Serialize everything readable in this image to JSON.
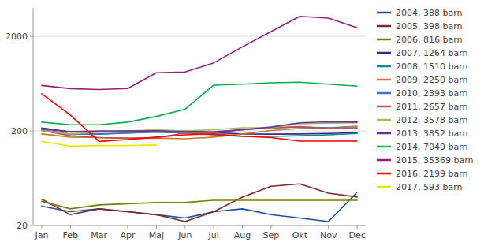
{
  "chart_data": {
    "type": "line",
    "categories": [
      "Jan",
      "Feb",
      "Mar",
      "Apr",
      "Maj",
      "Jun",
      "Jul",
      "Aug",
      "Sep",
      "Okt",
      "Nov",
      "Dec"
    ],
    "series": [
      {
        "name": "2004, 388 barn",
        "color": "#1f4e9e",
        "values": [
          32,
          28,
          30,
          28,
          26,
          24,
          28,
          30,
          26,
          24,
          22,
          45
        ]
      },
      {
        "name": "2005, 398 barn",
        "color": "#7b2929",
        "values": [
          38,
          26,
          30,
          28,
          26,
          22,
          28,
          40,
          52,
          55,
          44,
          40
        ]
      },
      {
        "name": "2006, 816 barn",
        "color": "#7c7c00",
        "values": [
          36,
          30,
          33,
          34,
          35,
          35,
          37,
          37,
          37,
          37,
          37,
          37
        ]
      },
      {
        "name": "2007, 1264 barn",
        "color": "#3c2580",
        "values": [
          215,
          195,
          195,
          198,
          200,
          200,
          192,
          186,
          185,
          186,
          188,
          192
        ]
      },
      {
        "name": "2008, 1510 barn",
        "color": "#008b8b",
        "values": [
          202,
          185,
          186,
          190,
          195,
          190,
          182,
          175,
          175,
          178,
          182,
          188
        ]
      },
      {
        "name": "2009, 2250 barn",
        "color": "#c87830",
        "values": [
          186,
          172,
          170,
          166,
          168,
          165,
          172,
          186,
          202,
          212,
          216,
          224
        ]
      },
      {
        "name": "2010, 2393 barn",
        "color": "#4472c4",
        "values": [
          206,
          185,
          185,
          190,
          196,
          190,
          192,
          206,
          215,
          220,
          216,
          216
        ]
      },
      {
        "name": "2011, 2657 barn",
        "color": "#c0504d",
        "values": [
          202,
          178,
          170,
          168,
          170,
          190,
          192,
          206,
          216,
          222,
          212,
          212
        ]
      },
      {
        "name": "2012, 3578 barn",
        "color": "#9bbb59",
        "values": [
          202,
          185,
          196,
          200,
          206,
          200,
          206,
          216,
          216,
          238,
          242,
          244
        ]
      },
      {
        "name": "2013, 3852 barn",
        "color": "#6a3096",
        "values": [
          210,
          196,
          200,
          200,
          200,
          196,
          196,
          206,
          220,
          244,
          250,
          248
        ]
      },
      {
        "name": "2014, 7049 barn",
        "color": "#00b050",
        "values": [
          248,
          232,
          232,
          248,
          285,
          340,
          610,
          625,
          645,
          655,
          625,
          595
        ]
      },
      {
        "name": "2015, 35369 barn",
        "color": "#9b1c7a",
        "values": [
          605,
          560,
          548,
          562,
          825,
          840,
          1050,
          1550,
          2250,
          3250,
          3120,
          2460
        ]
      },
      {
        "name": "2016, 2199 barn",
        "color": "#ff0000",
        "values": [
          495,
          295,
          155,
          162,
          172,
          182,
          186,
          176,
          170,
          156,
          156,
          156
        ]
      },
      {
        "name": "2017, 593 barn",
        "color": "#e8e800",
        "values": [
          155,
          138,
          140,
          140,
          142,
          null,
          null,
          null,
          null,
          null,
          null,
          null
        ]
      }
    ],
    "log": "y",
    "ylim": [
      20,
      4000
    ],
    "yticks": [
      20,
      200,
      2000
    ],
    "grid": true,
    "legend": "right"
  }
}
